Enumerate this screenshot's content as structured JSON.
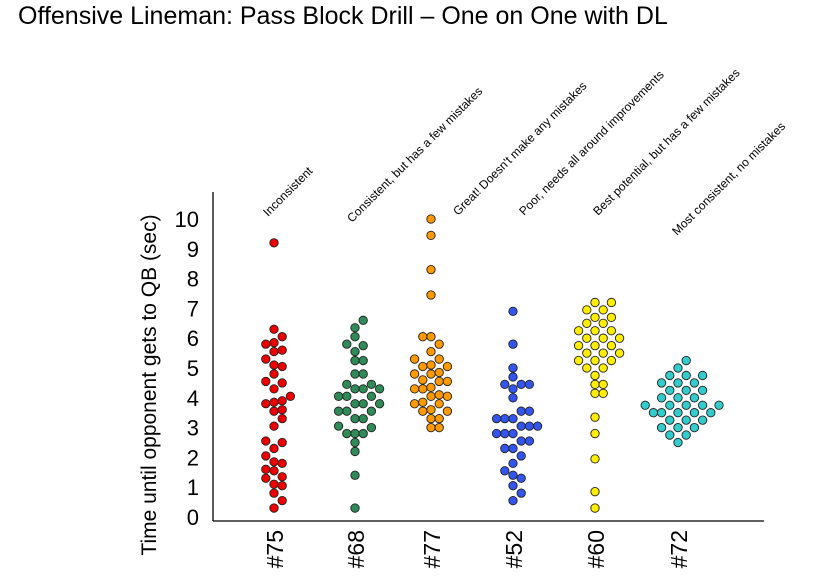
{
  "chart_data": {
    "type": "scatter",
    "subtype": "beeswarm",
    "title": "Offensive Lineman: Pass Block Drill – One on One with DL",
    "xlabel": "",
    "ylabel": "Time until opponent gets to QB (sec)",
    "ylim": [
      0,
      10
    ],
    "yticks": [
      "0",
      "1",
      "2",
      "3",
      "4",
      "5",
      "6",
      "7",
      "8",
      "9",
      "10"
    ],
    "grid": false,
    "categories": [
      "#75",
      "#68",
      "#77",
      "#52",
      "#60",
      "#72"
    ],
    "series": [
      {
        "name": "#75",
        "color": "#ee0000",
        "annotation": "Inconsistent",
        "values": [
          0.3,
          0.55,
          0.8,
          1.05,
          1.1,
          1.3,
          1.35,
          1.55,
          1.6,
          1.8,
          1.85,
          2.05,
          2.3,
          2.5,
          2.55,
          3.05,
          3.3,
          3.55,
          3.6,
          3.8,
          3.85,
          3.9,
          4.05,
          4.3,
          4.5,
          4.55,
          4.8,
          5.05,
          5.1,
          5.3,
          5.55,
          5.6,
          5.8,
          5.85,
          6.05,
          6.3,
          9.2
        ]
      },
      {
        "name": "#68",
        "color": "#2e8b57",
        "annotation": "Consistent, but has a few mistakes",
        "values": [
          0.3,
          1.4,
          2.2,
          2.5,
          2.8,
          2.8,
          2.8,
          3.0,
          3.05,
          3.3,
          3.3,
          3.55,
          3.55,
          3.55,
          3.8,
          3.8,
          3.8,
          4.05,
          4.05,
          4.05,
          4.3,
          4.3,
          4.3,
          4.45,
          4.45,
          4.8,
          4.8,
          5.25,
          5.25,
          5.55,
          5.75,
          5.8,
          6.05,
          6.35,
          6.6
        ]
      },
      {
        "name": "#77",
        "color": "#ff9900",
        "annotation": "Great! Doesn't make any mistakes",
        "values": [
          3.0,
          3.0,
          3.3,
          3.3,
          3.55,
          3.55,
          3.6,
          3.8,
          3.8,
          3.85,
          4.05,
          4.05,
          4.1,
          4.3,
          4.3,
          4.35,
          4.55,
          4.55,
          4.6,
          4.8,
          4.8,
          4.85,
          5.05,
          5.05,
          5.1,
          5.3,
          5.3,
          5.55,
          5.8,
          6.05,
          6.05,
          7.45,
          8.3,
          9.45,
          10.0
        ]
      },
      {
        "name": "#52",
        "color": "#3355ee",
        "annotation": "Poor, needs all around improvements",
        "values": [
          0.55,
          0.8,
          1.05,
          1.3,
          1.4,
          1.55,
          1.8,
          2.05,
          2.3,
          2.3,
          2.55,
          2.55,
          2.8,
          2.8,
          2.8,
          3.05,
          3.05,
          3.05,
          3.3,
          3.3,
          3.3,
          3.55,
          3.55,
          4.0,
          4.3,
          4.45,
          4.45,
          4.45,
          4.7,
          5.0,
          5.8,
          6.9
        ]
      },
      {
        "name": "#60",
        "color": "#ffee00",
        "annotation": "Best potential, but has a few mistakes",
        "values": [
          0.3,
          0.85,
          1.95,
          2.8,
          3.35,
          4.15,
          4.15,
          4.45,
          4.45,
          4.75,
          5.0,
          5.0,
          5.25,
          5.25,
          5.25,
          5.5,
          5.5,
          5.5,
          5.75,
          5.75,
          5.75,
          6.0,
          6.0,
          6.0,
          6.25,
          6.25,
          6.25,
          6.5,
          6.5,
          6.7,
          6.7,
          6.95,
          6.95,
          7.2,
          7.2
        ]
      },
      {
        "name": "#72",
        "color": "#33cccc",
        "annotation": "Most consistent, no mistakes",
        "values": [
          2.5,
          2.75,
          2.75,
          3.0,
          3.0,
          3.0,
          3.25,
          3.25,
          3.25,
          3.5,
          3.5,
          3.5,
          3.5,
          3.5,
          3.75,
          3.75,
          3.75,
          3.75,
          3.75,
          4.0,
          4.0,
          4.0,
          4.25,
          4.25,
          4.25,
          4.5,
          4.5,
          4.5,
          4.75,
          4.75,
          4.75,
          5.0,
          5.25
        ]
      }
    ]
  }
}
